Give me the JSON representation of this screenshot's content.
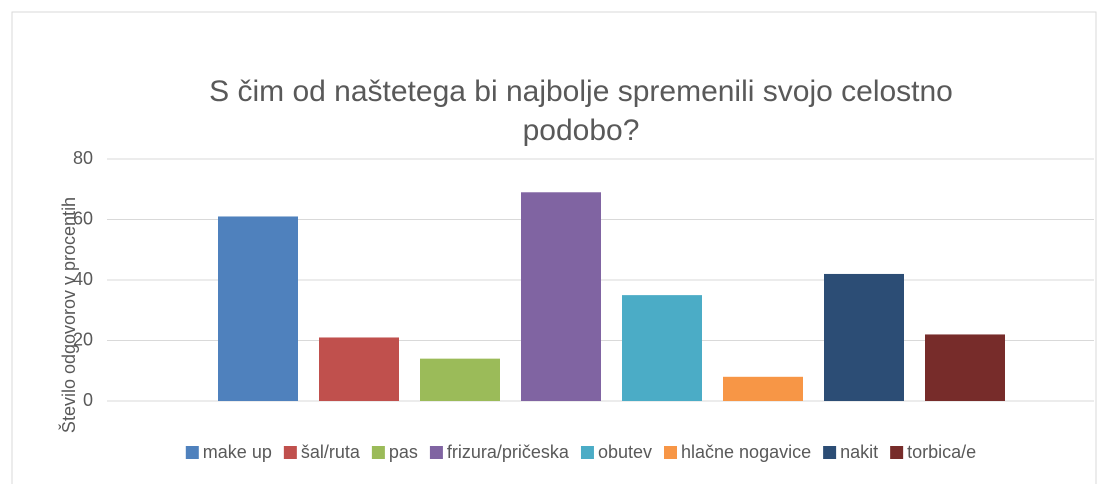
{
  "chart_data": {
    "type": "bar",
    "title": "S čim od naštetega bi najbolje spremenili svojo celostno podobo?",
    "ylabel": "Število odgovorov v procentih",
    "series": [
      {
        "name": "make up",
        "color": "#4f81bd",
        "values": [
          61
        ]
      },
      {
        "name": "šal/ruta",
        "color": "#c0504d",
        "values": [
          21
        ]
      },
      {
        "name": "pas",
        "color": "#9bbb59",
        "values": [
          14
        ]
      },
      {
        "name": "frizura/pričeska",
        "color": "#8064a2",
        "values": [
          69
        ]
      },
      {
        "name": "obutev",
        "color": "#4bacc6",
        "values": [
          35
        ]
      },
      {
        "name": "hlačne nogavice",
        "color": "#f79646",
        "values": [
          8
        ]
      },
      {
        "name": "nakit",
        "color": "#2c4d75",
        "values": [
          42
        ]
      },
      {
        "name": "torbica/e",
        "color": "#772c2a",
        "values": [
          22
        ]
      }
    ],
    "ylim": [
      0,
      80
    ],
    "yticks": [
      0,
      20,
      40,
      60,
      80
    ],
    "grid": true,
    "legend": "bottom"
  }
}
